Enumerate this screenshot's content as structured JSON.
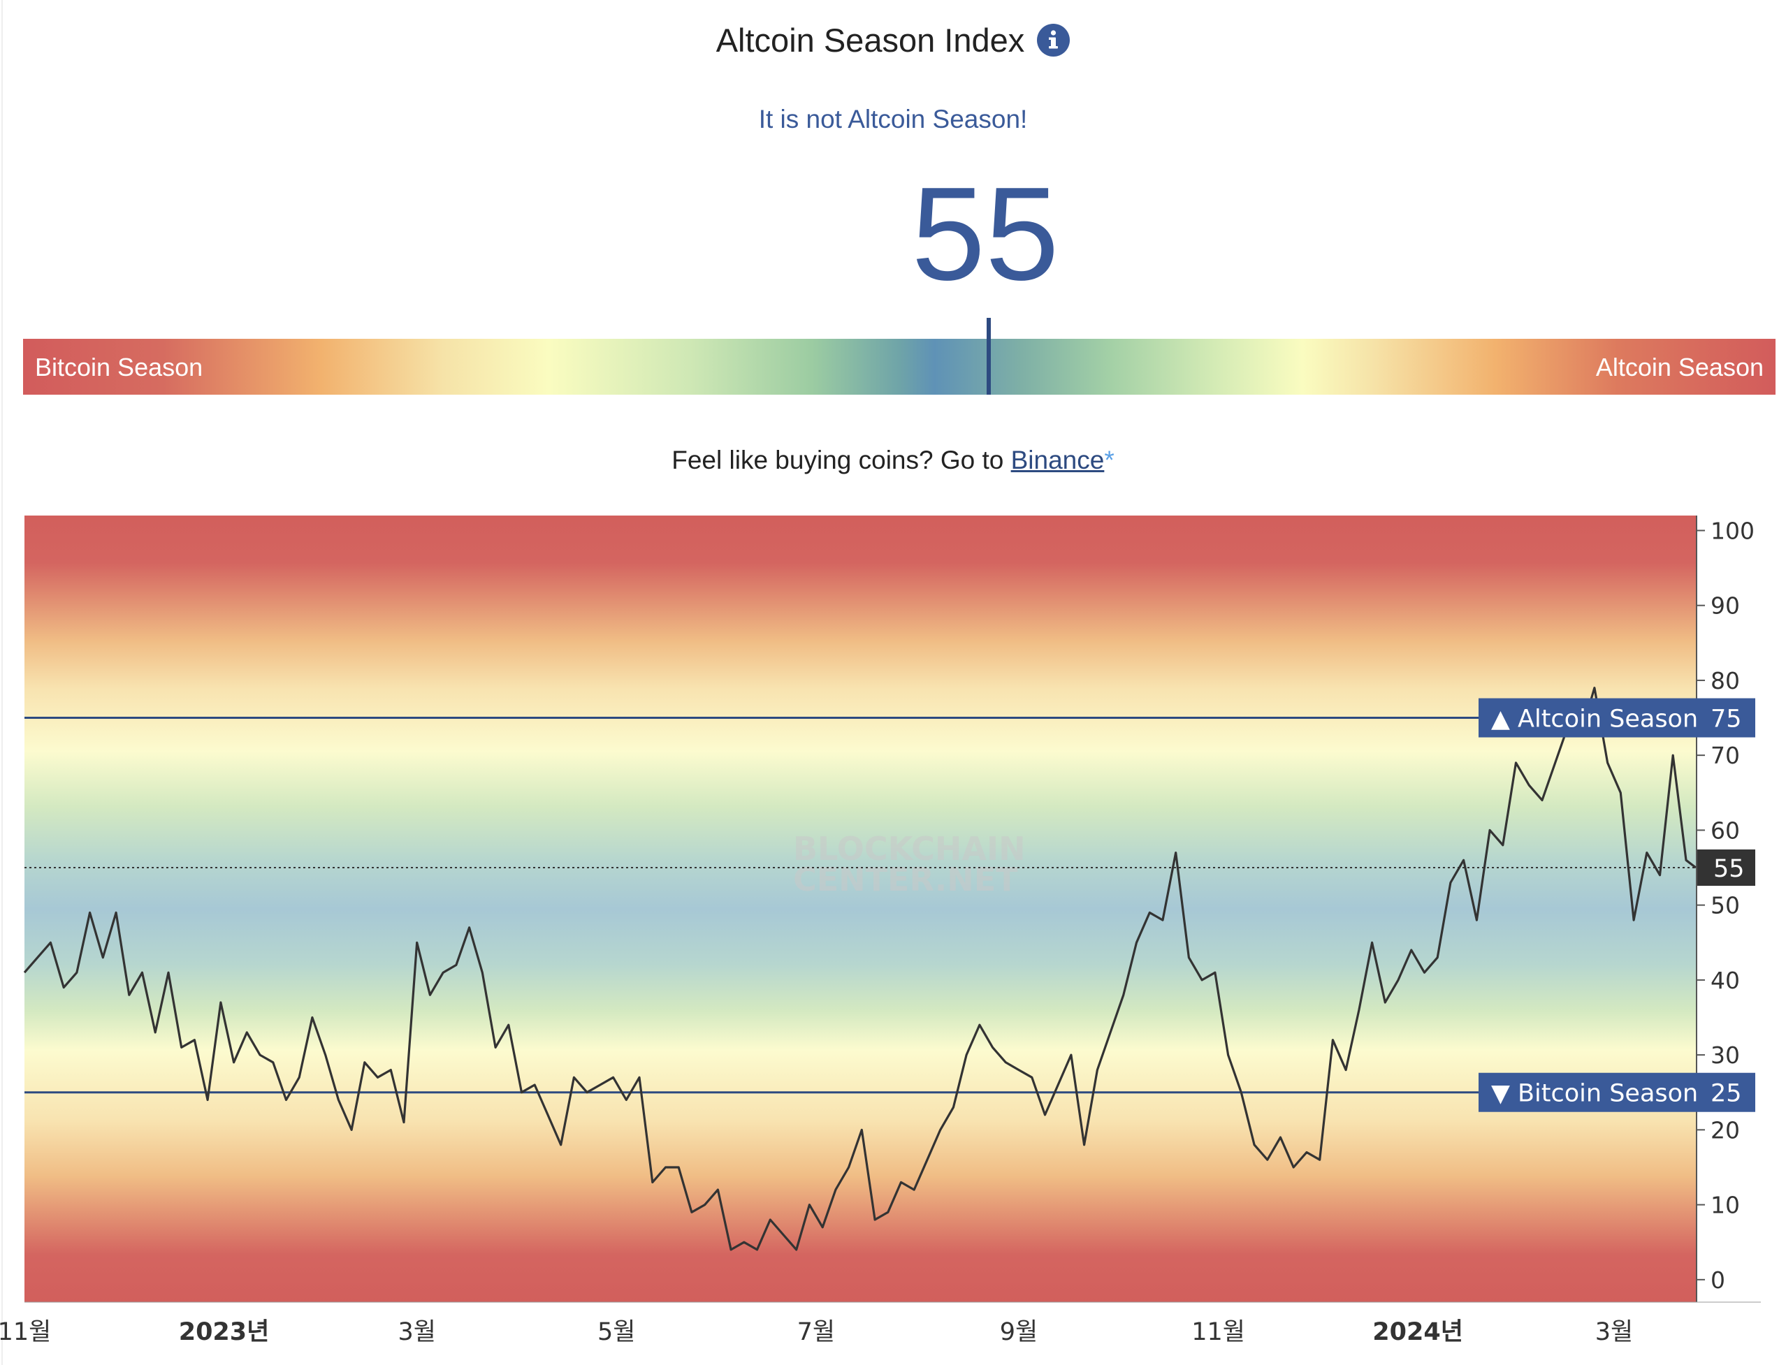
{
  "header": {
    "title": "Altcoin Season Index",
    "info_icon": "info-icon",
    "status": "It is not Altcoin Season!",
    "value": "55"
  },
  "gauge": {
    "left_label": "Bitcoin Season",
    "right_label": "Altcoin Season",
    "value": 55
  },
  "promo": {
    "text": "Feel like buying coins? Go to ",
    "link": "Binance",
    "asterisk": "*"
  },
  "colors": {
    "accent": "#3a5a99",
    "line": "#333333",
    "red": "#d25c5c",
    "threshold_line": "#2d4a80",
    "label_box": "#3a5a99",
    "current_box": "#333333"
  },
  "chart_data": {
    "type": "line",
    "ylim": [
      -3,
      102
    ],
    "yticks": [
      0,
      10,
      20,
      30,
      40,
      50,
      60,
      70,
      80,
      90,
      100
    ],
    "x_range": [
      "2022-11-01",
      "2024-03-26"
    ],
    "x_ticks": [
      {
        "date": "2022-11-01",
        "label": "11월",
        "bold": false
      },
      {
        "date": "2023-01-01",
        "label": "2023년",
        "bold": true
      },
      {
        "date": "2023-03-01",
        "label": "3월",
        "bold": false
      },
      {
        "date": "2023-05-01",
        "label": "5월",
        "bold": false
      },
      {
        "date": "2023-07-01",
        "label": "7월",
        "bold": false
      },
      {
        "date": "2023-09-01",
        "label": "9월",
        "bold": false
      },
      {
        "date": "2023-11-01",
        "label": "11월",
        "bold": false
      },
      {
        "date": "2024-01-01",
        "label": "2024년",
        "bold": true
      },
      {
        "date": "2024-03-01",
        "label": "3월",
        "bold": false
      }
    ],
    "thresholds": [
      {
        "value": 75,
        "label": "▲ Altcoin Season",
        "value_label": "75"
      },
      {
        "value": 25,
        "label": "▼ Bitcoin Season",
        "value_label": "25"
      }
    ],
    "current": {
      "value": 55,
      "label": "55"
    },
    "watermark": [
      "BLOCKCHAIN",
      "CENTER.NET"
    ],
    "series": [
      {
        "x": [
          "2022-11-01",
          "2022-11-05",
          "2022-11-09",
          "2022-11-13",
          "2022-11-17",
          "2022-11-21",
          "2022-11-25",
          "2022-11-29",
          "2022-12-03",
          "2022-12-07",
          "2022-12-11",
          "2022-12-15",
          "2022-12-19",
          "2022-12-23",
          "2022-12-27",
          "2022-12-31",
          "2023-01-04",
          "2023-01-08",
          "2023-01-12",
          "2023-01-16",
          "2023-01-20",
          "2023-01-24",
          "2023-01-28",
          "2023-02-01",
          "2023-02-05",
          "2023-02-09",
          "2023-02-13",
          "2023-02-17",
          "2023-02-21",
          "2023-02-25",
          "2023-03-01",
          "2023-03-05",
          "2023-03-09",
          "2023-03-13",
          "2023-03-17",
          "2023-03-21",
          "2023-03-25",
          "2023-03-29",
          "2023-04-02",
          "2023-04-06",
          "2023-04-10",
          "2023-04-14",
          "2023-04-18",
          "2023-04-22",
          "2023-04-26",
          "2023-04-30",
          "2023-05-04",
          "2023-05-08",
          "2023-05-12",
          "2023-05-16",
          "2023-05-20",
          "2023-05-24",
          "2023-05-28",
          "2023-06-01",
          "2023-06-05",
          "2023-06-09",
          "2023-06-13",
          "2023-06-17",
          "2023-06-21",
          "2023-06-25",
          "2023-06-29",
          "2023-07-03",
          "2023-07-07",
          "2023-07-11",
          "2023-07-15",
          "2023-07-19",
          "2023-07-23",
          "2023-07-27",
          "2023-07-31",
          "2023-08-04",
          "2023-08-08",
          "2023-08-12",
          "2023-08-16",
          "2023-08-20",
          "2023-08-24",
          "2023-08-28",
          "2023-09-01",
          "2023-09-05",
          "2023-09-09",
          "2023-09-13",
          "2023-09-17",
          "2023-09-21",
          "2023-09-25",
          "2023-09-29",
          "2023-10-03",
          "2023-10-07",
          "2023-10-11",
          "2023-10-15",
          "2023-10-19",
          "2023-10-23",
          "2023-10-27",
          "2023-10-31",
          "2023-11-04",
          "2023-11-08",
          "2023-11-12",
          "2023-11-16",
          "2023-11-20",
          "2023-11-24",
          "2023-11-28",
          "2023-12-02",
          "2023-12-06",
          "2023-12-10",
          "2023-12-14",
          "2023-12-18",
          "2023-12-22",
          "2023-12-26",
          "2023-12-30",
          "2024-01-03",
          "2024-01-07",
          "2024-01-11",
          "2024-01-15",
          "2024-01-19",
          "2024-01-23",
          "2024-01-27",
          "2024-01-31",
          "2024-02-04",
          "2024-02-08",
          "2024-02-12",
          "2024-02-16",
          "2024-02-20",
          "2024-02-24",
          "2024-02-28",
          "2024-03-03",
          "2024-03-07",
          "2024-03-11",
          "2024-03-15",
          "2024-03-19",
          "2024-03-23",
          "2024-03-26"
        ],
        "values": [
          41,
          43,
          45,
          39,
          41,
          49,
          43,
          49,
          38,
          41,
          33,
          41,
          31,
          32,
          24,
          37,
          29,
          33,
          30,
          29,
          24,
          27,
          35,
          30,
          24,
          20,
          29,
          27,
          28,
          21,
          45,
          38,
          41,
          42,
          47,
          41,
          31,
          34,
          25,
          26,
          22,
          18,
          27,
          25,
          26,
          27,
          24,
          27,
          13,
          15,
          15,
          9,
          10,
          12,
          4,
          5,
          4,
          8,
          6,
          4,
          10,
          7,
          12,
          15,
          20,
          8,
          9,
          13,
          12,
          16,
          20,
          23,
          30,
          34,
          31,
          29,
          28,
          27,
          22,
          26,
          30,
          18,
          28,
          33,
          38,
          45,
          49,
          48,
          57,
          43,
          40,
          41,
          30,
          25,
          18,
          16,
          19,
          15,
          17,
          16,
          32,
          28,
          36,
          45,
          37,
          40,
          44,
          41,
          43,
          53,
          56,
          48,
          60,
          58,
          69,
          66,
          64,
          69,
          74,
          73,
          79,
          69,
          65,
          48,
          57,
          54,
          70,
          56,
          55
        ]
      }
    ]
  }
}
